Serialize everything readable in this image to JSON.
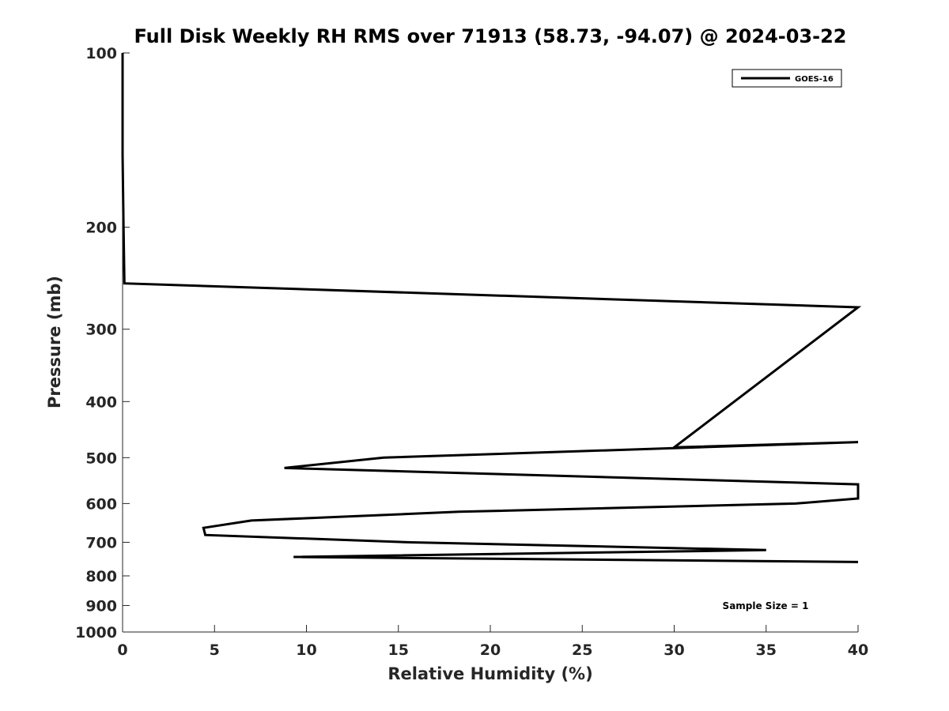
{
  "chart_data": {
    "type": "line",
    "title": "Full Disk Weekly RH RMS over 71913 (58.73, -94.07) @ 2024-03-22",
    "xlabel": "Relative Humidity (%)",
    "ylabel": "Pressure (mb)",
    "xlim": [
      0,
      40
    ],
    "ylim": [
      100,
      1000
    ],
    "y_scale": "log",
    "y_reversed": true,
    "grid": false,
    "legend_position": "top-right",
    "x_ticks": [
      "0",
      "5",
      "10",
      "15",
      "20",
      "25",
      "30",
      "35",
      "40"
    ],
    "y_ticks": [
      "100",
      "200",
      "300",
      "400",
      "500",
      "600",
      "700",
      "800",
      "900",
      "1000"
    ],
    "series": [
      {
        "name": "GOES-16",
        "color": "#000000",
        "points": [
          {
            "x": 0.0,
            "y": 100
          },
          {
            "x": 0.0,
            "y": 150
          },
          {
            "x": 0.05,
            "y": 200
          },
          {
            "x": 0.1,
            "y": 250
          },
          {
            "x": 40.0,
            "y": 275
          },
          {
            "x": 30.0,
            "y": 480
          },
          {
            "x": 40.0,
            "y": 470
          },
          {
            "x": 14.2,
            "y": 500
          },
          {
            "x": 8.8,
            "y": 521
          },
          {
            "x": 40.0,
            "y": 556
          },
          {
            "x": 40.0,
            "y": 588
          },
          {
            "x": 36.6,
            "y": 600
          },
          {
            "x": 18.3,
            "y": 620
          },
          {
            "x": 7.0,
            "y": 642
          },
          {
            "x": 4.4,
            "y": 661
          },
          {
            "x": 4.5,
            "y": 680
          },
          {
            "x": 15.7,
            "y": 700
          },
          {
            "x": 35.0,
            "y": 722
          },
          {
            "x": 9.3,
            "y": 742
          },
          {
            "x": 40.0,
            "y": 757
          }
        ]
      }
    ],
    "annotation": "Sample Size = 1"
  }
}
